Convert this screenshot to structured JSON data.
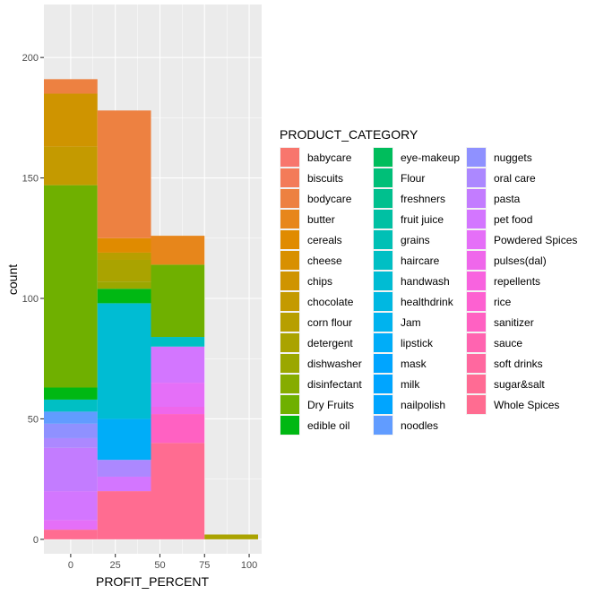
{
  "chart_data": {
    "type": "bar",
    "subtype": "stacked-histogram",
    "xlabel": "PROFIT_PERCENT",
    "ylabel": "count",
    "legend_title": "PRODUCT_CATEGORY",
    "legend_position": "right",
    "grid": true,
    "xlim": [
      -15,
      107
    ],
    "ylim": [
      -6,
      222
    ],
    "x_ticks": [
      0,
      25,
      50,
      75,
      100
    ],
    "y_ticks": [
      0,
      50,
      100,
      150,
      200
    ],
    "bin_width": 30,
    "bin_centers": [
      0,
      30,
      60,
      90
    ],
    "categories": [
      "babycare",
      "biscuits",
      "bodycare",
      "butter",
      "cereals",
      "cheese",
      "chips",
      "chocolate",
      "corn flour",
      "detergent",
      "dishwasher",
      "disinfectant",
      "Dry Fruits",
      "edible oil",
      "eye-makeup",
      "Flour",
      "freshners",
      "fruit juice",
      "grains",
      "haircare",
      "handwash",
      "healthdrink",
      "Jam",
      "lipstick",
      "mask",
      "milk",
      "nailpolish",
      "noodles",
      "nuggets",
      "oral care",
      "pasta",
      "pet food",
      "Powdered Spices",
      "pulses(dal)",
      "repellents",
      "rice",
      "sanitizer",
      "sauce",
      "soft drinks",
      "sugar&salt",
      "Whole Spices"
    ],
    "colors": [
      "#F8766D",
      "#F37B59",
      "#ED8141",
      "#E7861B",
      "#E08B00",
      "#D89000",
      "#CF9400",
      "#C49A00",
      "#B79F00",
      "#AAA300",
      "#9BA700",
      "#86AC00",
      "#6FB000",
      "#00B813",
      "#00BD5C",
      "#00BF78",
      "#00C08E",
      "#00C0A3",
      "#00C0B5",
      "#00BFC4",
      "#00BCD3",
      "#00B8E1",
      "#00B3EE",
      "#00ADF8",
      "#00A5FF",
      "#00A5FF",
      "#00A5FF",
      "#619CFF",
      "#8F91FF",
      "#AC88FF",
      "#C37CFF",
      "#D376FF",
      "#E56FF8",
      "#EF67EB",
      "#F863DF",
      "#FD61D1",
      "#FF61C2",
      "#FF64B0",
      "#FF689F",
      "#FF6B94",
      "#FF6C91"
    ],
    "series": [
      {
        "bin": 0,
        "counts": [
          0,
          0,
          6,
          0,
          0,
          0,
          22,
          16,
          0,
          0,
          0,
          0,
          84,
          5,
          0,
          0,
          0,
          0,
          0,
          5,
          0,
          0,
          0,
          0,
          0,
          0,
          0,
          5,
          6,
          4,
          18,
          12,
          4,
          0,
          0,
          0,
          0,
          0,
          0,
          0,
          4
        ]
      },
      {
        "bin": 1,
        "counts": [
          0,
          0,
          53,
          0,
          6,
          0,
          0,
          0,
          3,
          9,
          3,
          0,
          0,
          6,
          0,
          0,
          0,
          0,
          0,
          0,
          48,
          0,
          0,
          17,
          0,
          0,
          0,
          0,
          0,
          7,
          0,
          6,
          0,
          0,
          0,
          0,
          0,
          0,
          0,
          0,
          20
        ]
      },
      {
        "bin": 2,
        "counts": [
          0,
          0,
          0,
          12,
          0,
          0,
          0,
          0,
          0,
          0,
          0,
          0,
          30,
          0,
          0,
          0,
          0,
          0,
          0,
          4,
          0,
          0,
          0,
          0,
          0,
          0,
          0,
          0,
          0,
          0,
          0,
          15,
          10,
          3,
          0,
          0,
          12,
          0,
          0,
          0,
          40
        ]
      },
      {
        "bin": 3,
        "counts": [
          0,
          0,
          0,
          0,
          0,
          0,
          0,
          0,
          0,
          2,
          0,
          0,
          0,
          0,
          0,
          0,
          0,
          0,
          0,
          0,
          0,
          0,
          0,
          0,
          0,
          0,
          0,
          0,
          0,
          0,
          0,
          0,
          0,
          0,
          0,
          0,
          0,
          0,
          0,
          0,
          0
        ]
      }
    ]
  }
}
